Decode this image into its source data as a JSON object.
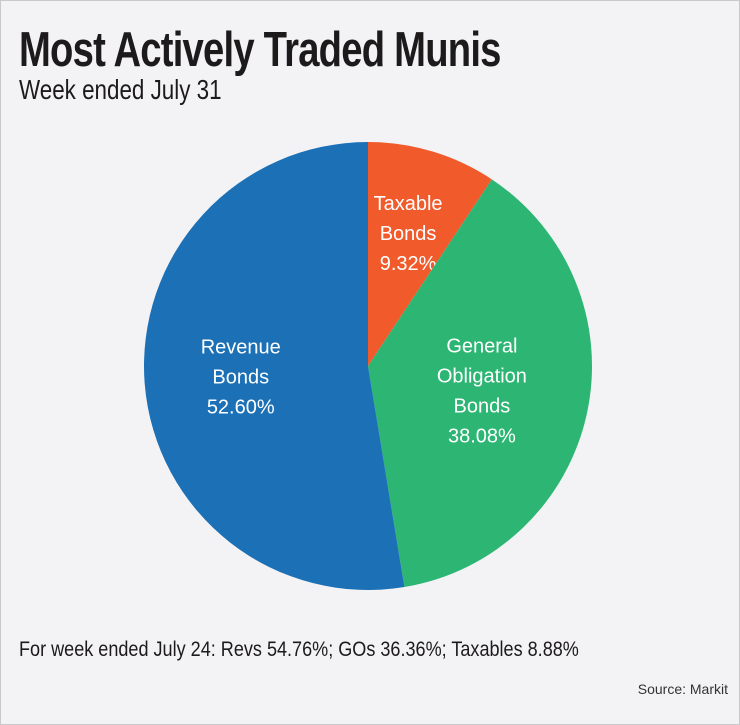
{
  "chart_data": {
    "type": "pie",
    "title": "Most Actively Traded Munis",
    "subtitle": "Week ended July 31",
    "slices": [
      {
        "label_lines": [
          "Taxable",
          "Bonds"
        ],
        "value": 9.32,
        "value_label": "9.32%",
        "color": "#f15a2b"
      },
      {
        "label_lines": [
          "General",
          "Obligation",
          "Bonds"
        ],
        "value": 38.08,
        "value_label": "38.08%",
        "color": "#2db673"
      },
      {
        "label_lines": [
          "Revenue",
          "Bonds"
        ],
        "value": 52.6,
        "value_label": "52.60%",
        "color": "#1b70b6"
      }
    ],
    "start": "top",
    "direction": "clockwise",
    "note": "For week ended July 24: Revs 54.76%; GOs 36.36%; Taxables 8.88%",
    "source": "Source: Markit"
  }
}
